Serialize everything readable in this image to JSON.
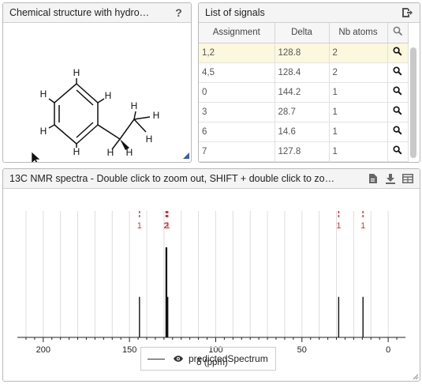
{
  "structure_panel": {
    "title": "Chemical structure with hydro…",
    "help_label": "?",
    "atoms": {
      "h": "H"
    }
  },
  "signals_panel": {
    "title": "List of signals",
    "columns": [
      "Assignment",
      "Delta",
      "Nb atoms"
    ],
    "rows": [
      {
        "assignment": "1,2",
        "delta": "128.8",
        "nb": "2",
        "highlighted": true
      },
      {
        "assignment": "4,5",
        "delta": "128.4",
        "nb": "2",
        "highlighted": false
      },
      {
        "assignment": "0",
        "delta": "144.2",
        "nb": "1",
        "highlighted": false
      },
      {
        "assignment": "3",
        "delta": "28.7",
        "nb": "1",
        "highlighted": false
      },
      {
        "assignment": "6",
        "delta": "14.6",
        "nb": "1",
        "highlighted": false
      },
      {
        "assignment": "7",
        "delta": "127.8",
        "nb": "1",
        "highlighted": false
      }
    ]
  },
  "spectrum_panel": {
    "title": "13C NMR spectra - Double click to zoom out, SHIFT + double click to zo…",
    "legend_label": "predictedSpectrum"
  },
  "chart_data": {
    "type": "line",
    "xlabel": "δ (ppm)",
    "x_ticks": [
      200,
      150,
      100,
      50,
      0
    ],
    "xlim": [
      215,
      -10
    ],
    "x_reversed": true,
    "peaks": [
      {
        "ppm": 144.2,
        "height": 0.45,
        "label": "1"
      },
      {
        "ppm": 128.8,
        "height": 1.0,
        "label": "2"
      },
      {
        "ppm": 128.4,
        "height": 1.0,
        "label": "2"
      },
      {
        "ppm": 127.8,
        "height": 0.45,
        "label": "1"
      },
      {
        "ppm": 28.7,
        "height": 0.45,
        "label": "1"
      },
      {
        "ppm": 14.6,
        "height": 0.45,
        "label": "1"
      }
    ],
    "series": [
      {
        "name": "predictedSpectrum"
      }
    ],
    "colors": {
      "peak": "#111111",
      "peak_label": "#e03030",
      "grid": "#dddddd"
    }
  }
}
